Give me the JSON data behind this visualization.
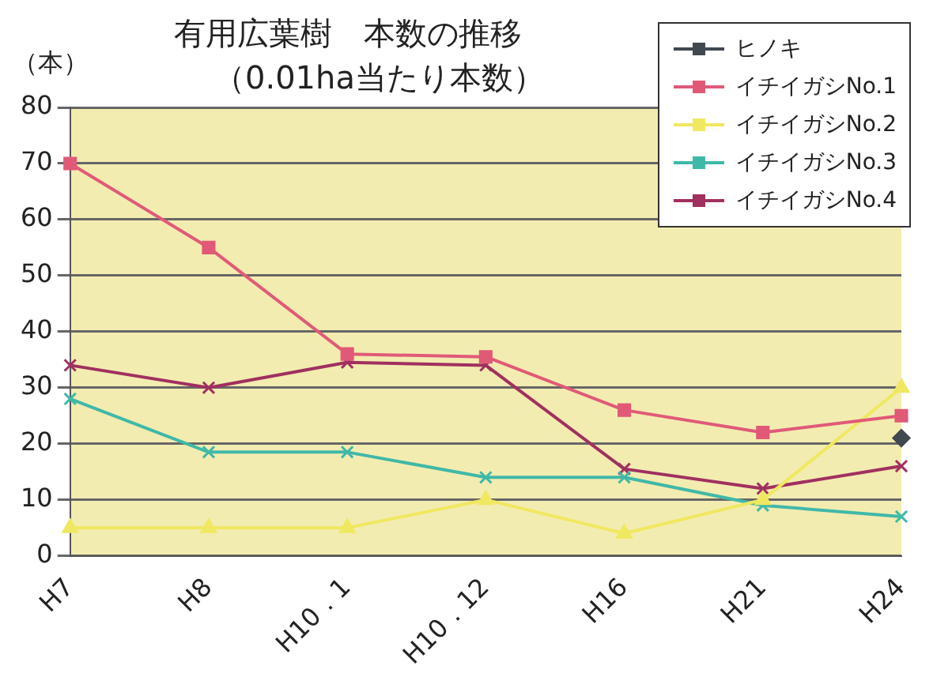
{
  "chart_data": {
    "type": "line",
    "title": "有用広葉樹　本数の推移",
    "subtitle": "（0.01ha当たり本数）",
    "ylabel": "（本）",
    "categories": [
      "H7",
      "H8",
      "H10．1",
      "H10．12",
      "H16",
      "H21",
      "H24"
    ],
    "ylim": [
      0,
      80
    ],
    "yticks": [
      0,
      10,
      20,
      30,
      40,
      50,
      60,
      70,
      80
    ],
    "grid": "y",
    "legend": "top right",
    "series": [
      {
        "name": "ヒノキ",
        "color": "#404850",
        "marker": "diamond",
        "values": [
          null,
          null,
          null,
          null,
          null,
          null,
          21
        ]
      },
      {
        "name": "イチイガシNo.1",
        "color": "#e05a78",
        "marker": "square",
        "values": [
          70,
          55,
          36,
          35.5,
          26,
          22,
          25
        ]
      },
      {
        "name": "イチイガシNo.2",
        "color": "#f0e860",
        "marker": "triangle",
        "values": [
          5,
          5,
          5,
          10,
          4,
          10,
          30
        ]
      },
      {
        "name": "イチイガシNo.3",
        "color": "#40b8a8",
        "marker": "cross",
        "values": [
          28,
          18.5,
          18.5,
          14,
          14,
          9,
          7
        ]
      },
      {
        "name": "イチイガシNo.4",
        "color": "#a03060",
        "marker": "cross",
        "values": [
          34,
          30,
          34.5,
          34,
          15.5,
          12,
          16
        ]
      }
    ]
  }
}
